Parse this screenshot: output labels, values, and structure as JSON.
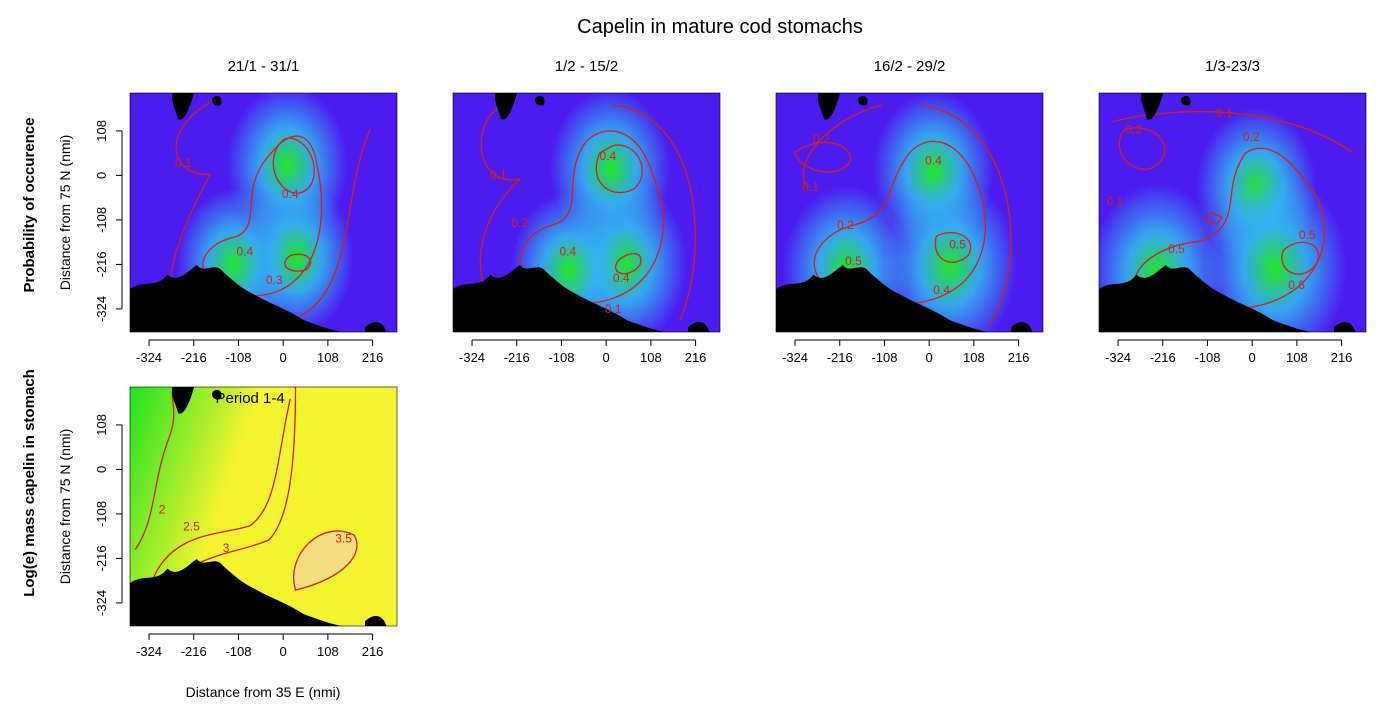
{
  "title": "Capelin in mature cod stomachs",
  "row_labels": [
    "Probability of occurence",
    "Log(e) mass capelin in stomach"
  ],
  "x_axis_label": "Distance from 35 E (nmi)",
  "y_axis_label": "Distance from 75 N (nmi)",
  "colors": {
    "contour": "#d02020",
    "land": "#000000",
    "prob_low": "#4b1bf0",
    "prob_mid": "#33b4f0",
    "prob_high": "#22e622",
    "mass_low": "#1fe31f",
    "mass_mid": "#f4f430",
    "mass_high": "#f8d890"
  },
  "chart_data": [
    {
      "type": "heatmap",
      "title": "21/1 - 31/1",
      "ylabel": "Distance from 75 N (nmi)",
      "xticks": [
        -324,
        -216,
        -108,
        0,
        108,
        216
      ],
      "yticks": [
        108,
        0,
        -108,
        -216,
        -324
      ],
      "xlim": [
        -370,
        275
      ],
      "ylim": [
        -380,
        200
      ],
      "contour_labels": [
        "0.1",
        "0.4",
        "0.4",
        "0.3"
      ],
      "hotspots": [
        {
          "x": 10,
          "y": 25,
          "value": 0.45
        },
        {
          "x": 30,
          "y": -200,
          "value": 0.42
        },
        {
          "x": -120,
          "y": -215,
          "value": 0.4
        }
      ]
    },
    {
      "type": "heatmap",
      "title": "1/2 - 15/2",
      "xticks": [
        -324,
        -216,
        -108,
        0,
        108,
        216
      ],
      "xlim": [
        -370,
        275
      ],
      "ylim": [
        -380,
        200
      ],
      "contour_labels": [
        "0.1",
        "0.2",
        "0.4",
        "0.4",
        "0.4",
        "0.1"
      ],
      "hotspots": [
        {
          "x": 10,
          "y": 15,
          "value": 0.45
        },
        {
          "x": 45,
          "y": -215,
          "value": 0.48
        },
        {
          "x": -90,
          "y": -230,
          "value": 0.42
        }
      ]
    },
    {
      "type": "heatmap",
      "title": "16/2 - 29/2",
      "xticks": [
        -324,
        -216,
        -108,
        0,
        108,
        216
      ],
      "xlim": [
        -370,
        275
      ],
      "ylim": [
        -380,
        200
      ],
      "contour_labels": [
        "0.2",
        "0.1",
        "0.4",
        "0.2",
        "0.5",
        "0.5",
        "0.4"
      ],
      "hotspots": [
        {
          "x": 10,
          "y": 10,
          "value": 0.45
        },
        {
          "x": 50,
          "y": -220,
          "value": 0.55
        },
        {
          "x": -200,
          "y": -230,
          "value": 0.5
        }
      ]
    },
    {
      "type": "heatmap",
      "title": "1/3-23/3",
      "xticks": [
        -324,
        -216,
        -108,
        0,
        108,
        216
      ],
      "xlim": [
        -370,
        275
      ],
      "ylim": [
        -380,
        200
      ],
      "contour_labels": [
        "0.1",
        "0.2",
        "0.2",
        "0.1",
        "0.5",
        "0.5",
        "0.6"
      ],
      "hotspots": [
        {
          "x": 10,
          "y": -30,
          "value": 0.45
        },
        {
          "x": 55,
          "y": -225,
          "value": 0.62
        },
        {
          "x": -230,
          "y": -235,
          "value": 0.55
        }
      ]
    },
    {
      "type": "heatmap",
      "title": "",
      "annotation": "Period 1-4",
      "xlabel": "Distance from 35 E (nmi)",
      "ylabel": "Distance from 75 N (nmi)",
      "xticks": [
        -324,
        -216,
        -108,
        0,
        108,
        216
      ],
      "yticks": [
        108,
        0,
        -108,
        -216,
        -324
      ],
      "xlim": [
        -370,
        275
      ],
      "ylim": [
        -380,
        200
      ],
      "contour_labels": [
        "2",
        "2.5",
        "3",
        "3.5"
      ],
      "contour_levels": [
        2,
        2.5,
        3,
        3.5
      ]
    }
  ]
}
